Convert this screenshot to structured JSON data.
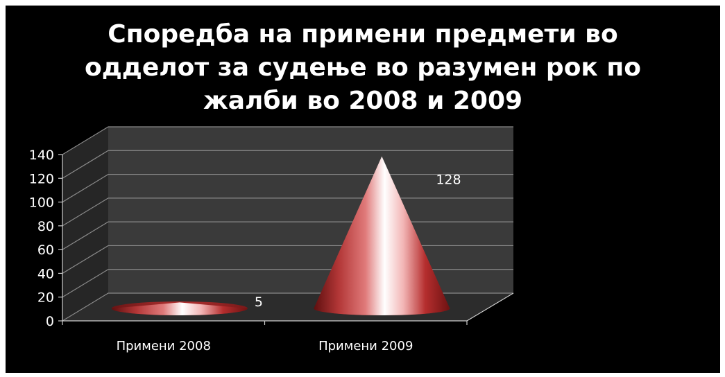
{
  "chart_data": {
    "type": "bar",
    "shape": "cone-3d",
    "title_lines": [
      "Споредба на примени предмети во",
      "одделот за судење во разумен рок по",
      "жалби во 2008 и 2009"
    ],
    "categories": [
      "Примени 2008",
      "Примени 2009"
    ],
    "values": [
      5,
      128
    ],
    "data_labels": [
      "5",
      "128"
    ],
    "ylim": [
      0,
      140
    ],
    "yticks": [
      0,
      20,
      40,
      60,
      80,
      100,
      120,
      140
    ],
    "ytick_labels": [
      "0",
      "20",
      "40",
      "60",
      "80",
      "100",
      "120",
      "140"
    ],
    "grid": true,
    "legend": "none",
    "colors": {
      "background": "#000000",
      "wall": "#3a3a3a",
      "floor": "#2c2c2c",
      "gridline": "#8a8a8a",
      "bar": "#a52a2a",
      "bar_highlight": "#ffffff",
      "text": "#ffffff"
    }
  }
}
